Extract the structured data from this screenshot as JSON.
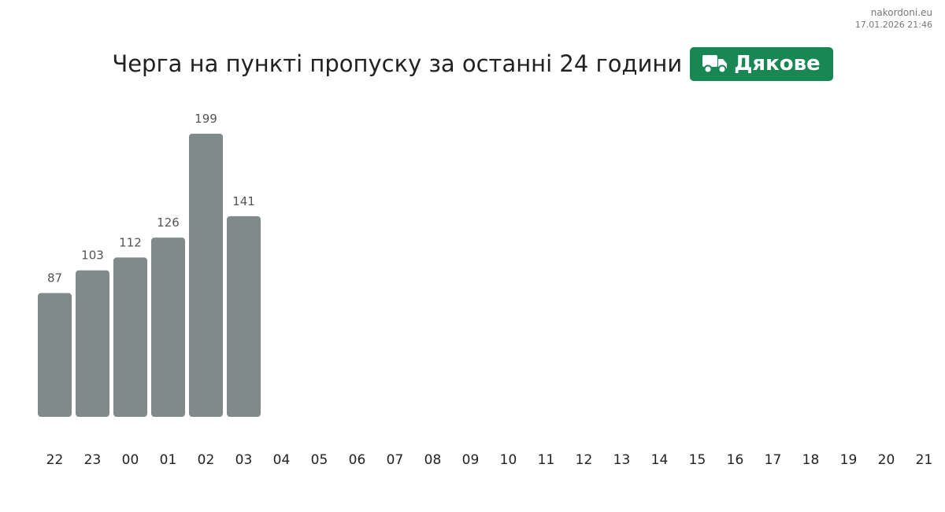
{
  "meta": {
    "site": "nakordoni.eu",
    "timestamp": "17.01.2026 21:46"
  },
  "header": {
    "title": "Черга на пункті пропуску за останні 24 години",
    "badge_label": "Дякове",
    "badge_icon": "truck-icon",
    "badge_color": "#198754"
  },
  "chart_data": {
    "type": "bar",
    "categories": [
      "22",
      "23",
      "00",
      "01",
      "02",
      "03",
      "04",
      "05",
      "06",
      "07",
      "08",
      "09",
      "10",
      "11",
      "12",
      "13",
      "14",
      "15",
      "16",
      "17",
      "18",
      "19",
      "20",
      "21"
    ],
    "values": [
      87,
      103,
      112,
      126,
      199,
      141,
      null,
      null,
      null,
      null,
      null,
      null,
      null,
      null,
      null,
      null,
      null,
      null,
      null,
      null,
      null,
      null,
      null,
      null
    ],
    "title": "Черга на пункті пропуску за останні 24 години",
    "xlabel": "",
    "ylabel": "",
    "ylim": [
      0,
      199
    ],
    "grid": false,
    "bar_color": "#7f8b8b",
    "label_color": "#555555"
  }
}
